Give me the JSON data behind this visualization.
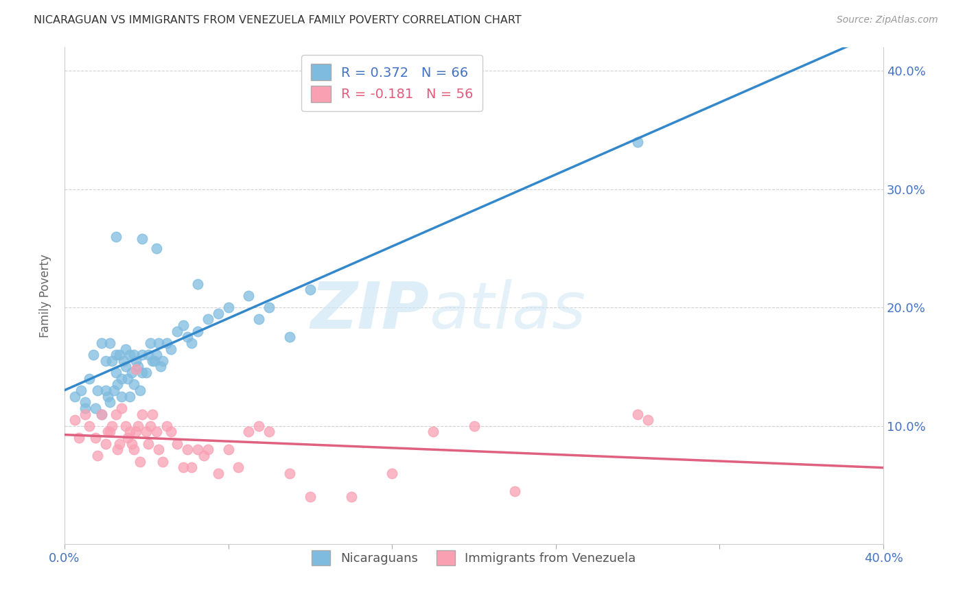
{
  "title": "NICARAGUAN VS IMMIGRANTS FROM VENEZUELA FAMILY POVERTY CORRELATION CHART",
  "source": "Source: ZipAtlas.com",
  "ylabel": "Family Poverty",
  "blue_color": "#7fbbdf",
  "pink_color": "#f9a0b3",
  "blue_line_color": "#3388cc",
  "pink_line_color": "#e06080",
  "blue_r": 0.372,
  "pink_r": -0.181,
  "blue_n": 66,
  "pink_n": 56,
  "xlim": [
    0.0,
    0.4
  ],
  "ylim": [
    0.0,
    0.42
  ],
  "x_tick_vals": [
    0.0,
    0.08,
    0.16,
    0.24,
    0.32,
    0.4
  ],
  "x_tick_labels_show": [
    "0.0%",
    "",
    "",
    "",
    "",
    "40.0%"
  ],
  "y_tick_vals": [
    0.1,
    0.2,
    0.3,
    0.4
  ],
  "y_tick_labels": [
    "10.0%",
    "20.0%",
    "30.0%",
    "40.0%"
  ],
  "watermark_text": "ZIPatlas",
  "blue_scatter_x": [
    0.005,
    0.008,
    0.01,
    0.01,
    0.012,
    0.014,
    0.015,
    0.016,
    0.018,
    0.018,
    0.02,
    0.02,
    0.021,
    0.022,
    0.022,
    0.023,
    0.024,
    0.025,
    0.025,
    0.026,
    0.027,
    0.028,
    0.028,
    0.029,
    0.03,
    0.03,
    0.031,
    0.032,
    0.032,
    0.033,
    0.034,
    0.034,
    0.035,
    0.036,
    0.037,
    0.038,
    0.038,
    0.04,
    0.041,
    0.042,
    0.043,
    0.044,
    0.045,
    0.046,
    0.047,
    0.048,
    0.05,
    0.052,
    0.055,
    0.058,
    0.06,
    0.062,
    0.065,
    0.07,
    0.075,
    0.08,
    0.09,
    0.095,
    0.1,
    0.11,
    0.12,
    0.28,
    0.038,
    0.025,
    0.045,
    0.065
  ],
  "blue_scatter_y": [
    0.125,
    0.13,
    0.12,
    0.115,
    0.14,
    0.16,
    0.115,
    0.13,
    0.17,
    0.11,
    0.13,
    0.155,
    0.125,
    0.12,
    0.17,
    0.155,
    0.13,
    0.145,
    0.16,
    0.135,
    0.16,
    0.14,
    0.125,
    0.155,
    0.15,
    0.165,
    0.14,
    0.125,
    0.16,
    0.145,
    0.16,
    0.135,
    0.155,
    0.15,
    0.13,
    0.145,
    0.16,
    0.145,
    0.16,
    0.17,
    0.155,
    0.155,
    0.16,
    0.17,
    0.15,
    0.155,
    0.17,
    0.165,
    0.18,
    0.185,
    0.175,
    0.17,
    0.18,
    0.19,
    0.195,
    0.2,
    0.21,
    0.19,
    0.2,
    0.175,
    0.215,
    0.34,
    0.258,
    0.26,
    0.25,
    0.22
  ],
  "pink_scatter_x": [
    0.005,
    0.007,
    0.01,
    0.012,
    0.015,
    0.016,
    0.018,
    0.02,
    0.021,
    0.022,
    0.023,
    0.025,
    0.026,
    0.027,
    0.028,
    0.03,
    0.031,
    0.032,
    0.033,
    0.034,
    0.035,
    0.036,
    0.037,
    0.038,
    0.04,
    0.041,
    0.042,
    0.043,
    0.045,
    0.046,
    0.048,
    0.05,
    0.052,
    0.055,
    0.058,
    0.06,
    0.062,
    0.065,
    0.068,
    0.07,
    0.075,
    0.08,
    0.085,
    0.09,
    0.095,
    0.1,
    0.11,
    0.12,
    0.14,
    0.16,
    0.18,
    0.2,
    0.22,
    0.28,
    0.285,
    0.035
  ],
  "pink_scatter_y": [
    0.105,
    0.09,
    0.11,
    0.1,
    0.09,
    0.075,
    0.11,
    0.085,
    0.095,
    0.095,
    0.1,
    0.11,
    0.08,
    0.085,
    0.115,
    0.1,
    0.09,
    0.095,
    0.085,
    0.08,
    0.095,
    0.1,
    0.07,
    0.11,
    0.095,
    0.085,
    0.1,
    0.11,
    0.095,
    0.08,
    0.07,
    0.1,
    0.095,
    0.085,
    0.065,
    0.08,
    0.065,
    0.08,
    0.075,
    0.08,
    0.06,
    0.08,
    0.065,
    0.095,
    0.1,
    0.095,
    0.06,
    0.04,
    0.04,
    0.06,
    0.095,
    0.1,
    0.045,
    0.11,
    0.105,
    0.148
  ]
}
